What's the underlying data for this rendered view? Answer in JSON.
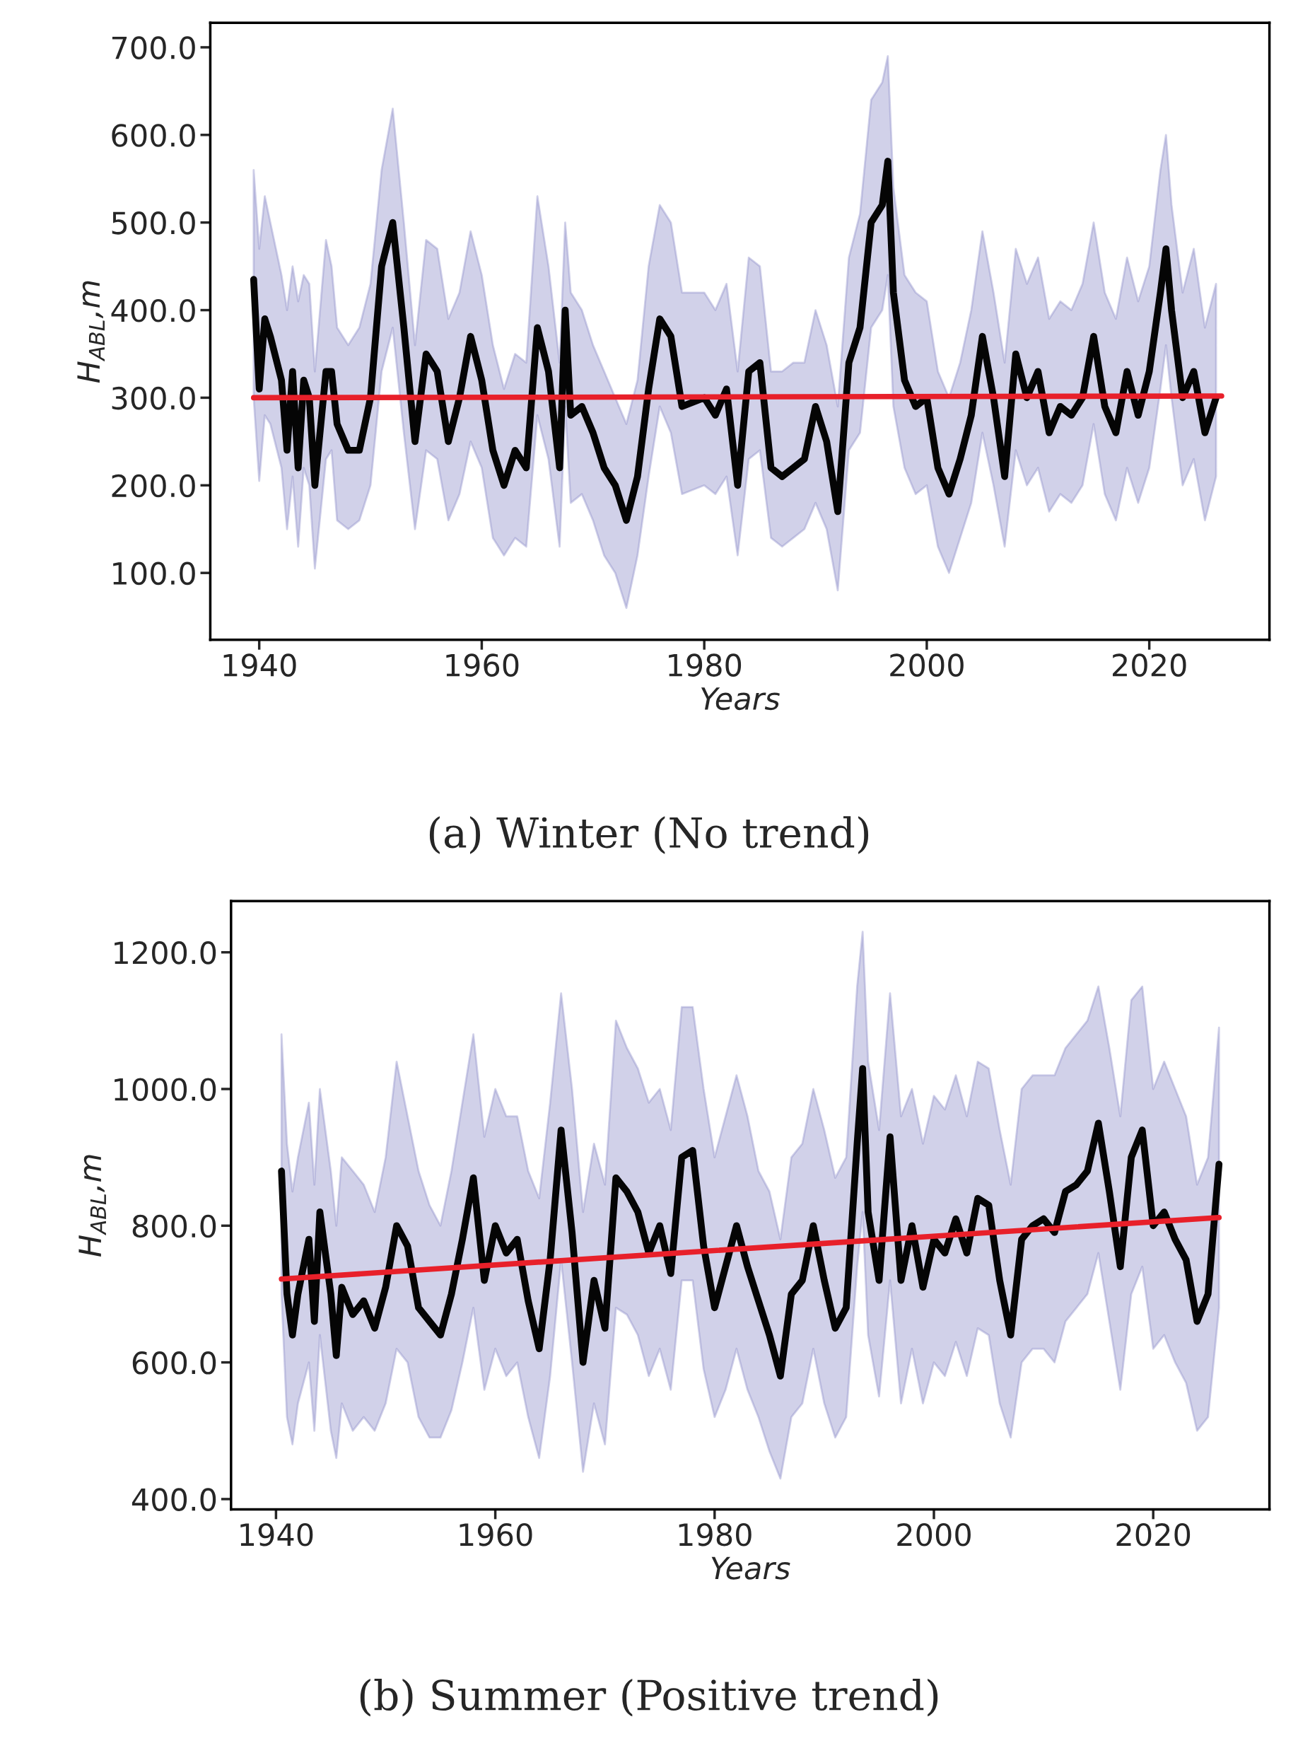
{
  "chart_data": [
    {
      "type": "line",
      "title": "(a) Winter (No trend)",
      "xlabel": "Years",
      "ylabel": "H$_{ABL}$,m",
      "grid": false,
      "legend": false,
      "xlim": [
        1935.6,
        2030.8
      ],
      "ylim": [
        23.6,
        728
      ],
      "xticks": [
        1940,
        1960,
        1980,
        2000,
        2020
      ],
      "yticks": [
        {
          "value": 100,
          "label": "100.0"
        },
        {
          "value": 200,
          "label": "200.0"
        },
        {
          "value": 300,
          "label": "300.0"
        },
        {
          "value": 400,
          "label": "400.0"
        },
        {
          "value": 500,
          "label": "500.0"
        },
        {
          "value": 600,
          "label": "600.0"
        },
        {
          "value": 700,
          "label": "700.0"
        }
      ],
      "series": [
        {
          "color": "#050505",
          "x": [
            1939.5,
            1940,
            1940.5,
            1941,
            1942,
            1942.5,
            1943,
            1943.5,
            1944,
            1944.5,
            1945,
            1946,
            1946.5,
            1947,
            1948,
            1949,
            1950,
            1951,
            1952,
            1953,
            1954,
            1955,
            1956,
            1957,
            1958,
            1959,
            1960,
            1961,
            1962,
            1963,
            1964,
            1965,
            1966,
            1967,
            1967.5,
            1968,
            1969,
            1970,
            1971,
            1972,
            1973,
            1974,
            1975,
            1976,
            1977,
            1978,
            1980,
            1981,
            1982,
            1983,
            1984,
            1985,
            1986,
            1987,
            1988,
            1989,
            1990,
            1991,
            1992,
            1993,
            1994,
            1995,
            1996,
            1996.5,
            1997,
            1998,
            1999,
            2000,
            2001,
            2002,
            2003,
            2004,
            2005,
            2006,
            2007,
            2008,
            2009,
            2010,
            2011,
            2012,
            2013,
            2014,
            2015,
            2016,
            2017,
            2018,
            2019,
            2020,
            2021,
            2021.5,
            2022,
            2023,
            2024,
            2025,
            2026
          ],
          "values": [
            435,
            310,
            390,
            370,
            320,
            240,
            330,
            220,
            320,
            300,
            200,
            330,
            330,
            270,
            240,
            240,
            300,
            450,
            500,
            380,
            250,
            350,
            330,
            250,
            300,
            370,
            320,
            240,
            200,
            240,
            220,
            380,
            330,
            220,
            400,
            280,
            290,
            260,
            220,
            200,
            160,
            210,
            310,
            390,
            370,
            290,
            300,
            280,
            310,
            200,
            330,
            340,
            220,
            210,
            220,
            230,
            290,
            250,
            170,
            340,
            380,
            500,
            520,
            570,
            420,
            320,
            290,
            300,
            220,
            190,
            230,
            280,
            370,
            300,
            210,
            350,
            300,
            330,
            260,
            290,
            280,
            300,
            370,
            290,
            260,
            330,
            280,
            330,
            420,
            470,
            400,
            300,
            330,
            260,
            300
          ],
          "lower": [
            300,
            205,
            280,
            270,
            220,
            150,
            210,
            130,
            220,
            200,
            105,
            230,
            240,
            160,
            150,
            160,
            200,
            330,
            380,
            260,
            150,
            240,
            230,
            160,
            190,
            250,
            220,
            140,
            120,
            140,
            130,
            280,
            230,
            130,
            290,
            180,
            190,
            160,
            120,
            100,
            60,
            120,
            210,
            290,
            260,
            190,
            200,
            190,
            210,
            120,
            230,
            240,
            140,
            130,
            140,
            150,
            180,
            150,
            80,
            240,
            260,
            380,
            400,
            440,
            290,
            220,
            190,
            200,
            130,
            100,
            140,
            180,
            260,
            200,
            130,
            240,
            200,
            220,
            170,
            190,
            180,
            200,
            270,
            190,
            160,
            220,
            180,
            220,
            310,
            360,
            300,
            200,
            230,
            160,
            210
          ],
          "upper": [
            560,
            470,
            530,
            500,
            440,
            400,
            450,
            410,
            440,
            430,
            330,
            480,
            450,
            380,
            360,
            380,
            430,
            560,
            630,
            500,
            360,
            480,
            470,
            390,
            420,
            490,
            440,
            360,
            310,
            350,
            340,
            530,
            450,
            340,
            500,
            420,
            400,
            360,
            330,
            300,
            270,
            320,
            450,
            520,
            500,
            420,
            420,
            400,
            430,
            330,
            460,
            450,
            330,
            330,
            340,
            340,
            400,
            360,
            290,
            460,
            510,
            640,
            660,
            690,
            540,
            440,
            420,
            410,
            330,
            300,
            340,
            400,
            490,
            420,
            340,
            470,
            430,
            460,
            390,
            410,
            400,
            430,
            500,
            420,
            390,
            460,
            410,
            450,
            560,
            600,
            520,
            420,
            470,
            380,
            430
          ]
        },
        {
          "color": "#e8202a",
          "x": [
            1939.5,
            2026.5
          ],
          "values": [
            300,
            302
          ]
        }
      ]
    },
    {
      "type": "line",
      "title": "(b) Summer (Positive trend)",
      "xlabel": "Years",
      "ylabel": "H$_{ABL}$,m",
      "grid": false,
      "legend": false,
      "xlim": [
        1935.9,
        2030.6
      ],
      "ylim": [
        385,
        1275
      ],
      "xticks": [
        1940,
        1960,
        1980,
        2000,
        2020
      ],
      "yticks": [
        {
          "value": 400,
          "label": "400.0"
        },
        {
          "value": 600,
          "label": "600.0"
        },
        {
          "value": 800,
          "label": "800.0"
        },
        {
          "value": 1000,
          "label": "1000.0"
        },
        {
          "value": 1200,
          "label": "1200.0"
        }
      ],
      "series": [
        {
          "color": "#050505",
          "x": [
            1940.5,
            1941,
            1941.5,
            1942,
            1943,
            1943.5,
            1944,
            1945,
            1945.5,
            1946,
            1947,
            1948,
            1949,
            1950,
            1951,
            1952,
            1953,
            1954,
            1955,
            1956,
            1957,
            1958,
            1959,
            1960,
            1961,
            1962,
            1963,
            1964,
            1965,
            1966,
            1967,
            1968,
            1969,
            1970,
            1971,
            1972,
            1973,
            1974,
            1975,
            1976,
            1977,
            1978,
            1979,
            1980,
            1981,
            1982,
            1983,
            1984,
            1985,
            1986,
            1987,
            1988,
            1989,
            1990,
            1991,
            1992,
            1993,
            1993.5,
            1994,
            1995,
            1996,
            1997,
            1998,
            1999,
            2000,
            2001,
            2002,
            2003,
            2004,
            2005,
            2006,
            2007,
            2008,
            2009,
            2010,
            2011,
            2012,
            2013,
            2014,
            2015,
            2016,
            2017,
            2018,
            2019,
            2020,
            2021,
            2022,
            2023,
            2024,
            2025,
            2026
          ],
          "values": [
            880,
            700,
            640,
            700,
            780,
            660,
            820,
            700,
            610,
            710,
            670,
            690,
            650,
            710,
            800,
            770,
            680,
            660,
            640,
            700,
            780,
            870,
            720,
            800,
            760,
            780,
            690,
            620,
            750,
            940,
            790,
            600,
            720,
            650,
            870,
            850,
            820,
            760,
            800,
            730,
            900,
            910,
            770,
            680,
            740,
            800,
            740,
            690,
            640,
            580,
            700,
            720,
            800,
            720,
            650,
            680,
            920,
            1030,
            820,
            720,
            930,
            720,
            800,
            710,
            780,
            760,
            810,
            760,
            840,
            830,
            720,
            640,
            780,
            800,
            810,
            790,
            850,
            860,
            880,
            950,
            850,
            740,
            900,
            940,
            800,
            820,
            780,
            750,
            660,
            700,
            890
          ],
          "lower": [
            700,
            520,
            480,
            540,
            600,
            500,
            640,
            500,
            460,
            540,
            500,
            520,
            500,
            540,
            620,
            600,
            520,
            490,
            490,
            530,
            600,
            680,
            560,
            620,
            580,
            600,
            520,
            460,
            580,
            750,
            600,
            440,
            540,
            480,
            680,
            670,
            640,
            580,
            620,
            560,
            720,
            720,
            590,
            520,
            560,
            620,
            560,
            520,
            470,
            430,
            520,
            540,
            620,
            540,
            490,
            520,
            740,
            820,
            640,
            550,
            720,
            540,
            620,
            540,
            600,
            580,
            630,
            580,
            650,
            640,
            540,
            490,
            600,
            620,
            620,
            600,
            660,
            680,
            700,
            760,
            660,
            560,
            700,
            740,
            620,
            640,
            600,
            570,
            500,
            520,
            680
          ],
          "upper": [
            1080,
            920,
            850,
            900,
            980,
            860,
            1000,
            880,
            800,
            900,
            880,
            860,
            820,
            900,
            1040,
            960,
            880,
            830,
            800,
            880,
            980,
            1080,
            930,
            1000,
            960,
            960,
            880,
            840,
            980,
            1140,
            1000,
            820,
            920,
            860,
            1100,
            1060,
            1030,
            980,
            1000,
            940,
            1120,
            1120,
            1000,
            900,
            960,
            1020,
            960,
            880,
            850,
            780,
            900,
            920,
            1000,
            940,
            870,
            900,
            1150,
            1230,
            1040,
            940,
            1140,
            960,
            1000,
            920,
            990,
            970,
            1020,
            960,
            1040,
            1030,
            940,
            860,
            1000,
            1020,
            1020,
            1020,
            1060,
            1080,
            1100,
            1150,
            1060,
            960,
            1130,
            1150,
            1000,
            1040,
            1000,
            960,
            860,
            900,
            1090
          ]
        },
        {
          "color": "#e8202a",
          "x": [
            1940.5,
            2026
          ],
          "values": [
            722,
            812
          ]
        }
      ]
    }
  ]
}
